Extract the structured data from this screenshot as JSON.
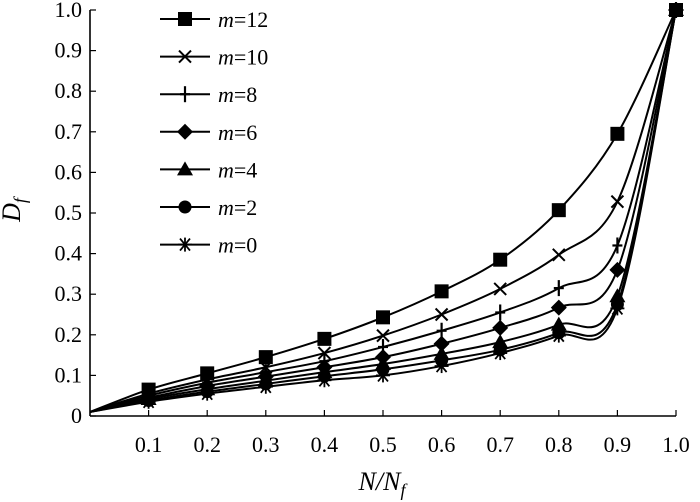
{
  "chart_data": {
    "type": "line",
    "xlabel": {
      "main": "N/N",
      "sub": "f"
    },
    "ylabel": {
      "main": "D",
      "sub": "f"
    },
    "xlim": [
      0,
      1.0
    ],
    "ylim": [
      0,
      1.0
    ],
    "x_ticks": [
      0.1,
      0.2,
      0.3,
      0.4,
      0.5,
      0.6,
      0.7,
      0.8,
      0.9,
      1.0
    ],
    "x_tick_labels": [
      "0.1",
      "0.2",
      "0.3",
      "0.4",
      "0.5",
      "0.6",
      "0.7",
      "0.8",
      "0.9",
      "1.0"
    ],
    "y_ticks": [
      0,
      0.1,
      0.2,
      0.3,
      0.4,
      0.5,
      0.6,
      0.7,
      0.8,
      0.9,
      1.0
    ],
    "y_tick_labels": [
      "0",
      "0.1",
      "0.2",
      "0.3",
      "0.4",
      "0.5",
      "0.6",
      "0.7",
      "0.8",
      "0.9",
      "1.0"
    ],
    "grid": false,
    "legend_position": "top-left",
    "x": [
      0,
      0.1,
      0.2,
      0.3,
      0.4,
      0.5,
      0.6,
      0.7,
      0.8,
      0.9,
      1.0
    ],
    "series": [
      {
        "name": "m=12",
        "marker": "square",
        "values": [
          0.01,
          0.065,
          0.105,
          0.145,
          0.19,
          0.243,
          0.307,
          0.385,
          0.507,
          0.695,
          1.0
        ]
      },
      {
        "name": "m=10",
        "marker": "x",
        "values": [
          0.01,
          0.055,
          0.09,
          0.12,
          0.155,
          0.198,
          0.25,
          0.313,
          0.397,
          0.528,
          1.0
        ]
      },
      {
        "name": "m=8",
        "marker": "plus",
        "values": [
          0.01,
          0.05,
          0.082,
          0.108,
          0.135,
          0.17,
          0.21,
          0.255,
          0.315,
          0.42,
          1.0
        ]
      },
      {
        "name": "m=6",
        "marker": "diamond",
        "values": [
          0.01,
          0.045,
          0.074,
          0.097,
          0.12,
          0.145,
          0.178,
          0.217,
          0.267,
          0.36,
          1.0
        ]
      },
      {
        "name": "m=4",
        "marker": "triangle",
        "values": [
          0.01,
          0.042,
          0.066,
          0.087,
          0.108,
          0.128,
          0.153,
          0.182,
          0.225,
          0.295,
          1.0
        ]
      },
      {
        "name": "m=2",
        "marker": "circle",
        "values": [
          0.01,
          0.038,
          0.06,
          0.079,
          0.098,
          0.115,
          0.137,
          0.163,
          0.205,
          0.275,
          1.0
        ]
      },
      {
        "name": "m=0",
        "marker": "asterisk",
        "values": [
          0.01,
          0.035,
          0.055,
          0.072,
          0.088,
          0.1,
          0.123,
          0.155,
          0.198,
          0.265,
          1.0
        ]
      }
    ],
    "colors": {
      "line": "#000000",
      "marker": "#000000"
    }
  }
}
